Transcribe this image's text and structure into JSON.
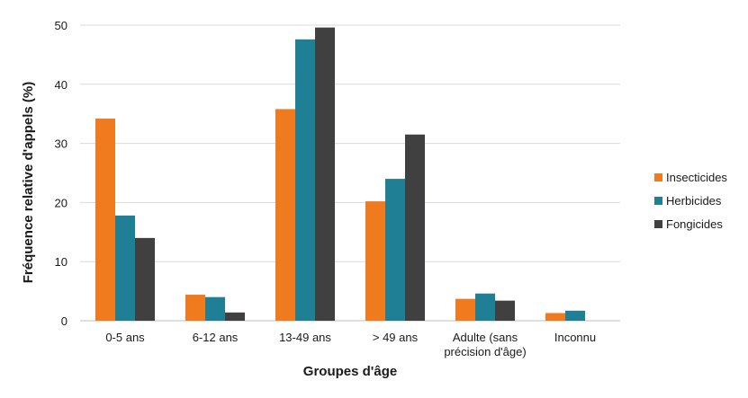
{
  "chart_data": {
    "type": "bar",
    "categories": [
      "0-5 ans",
      "6-12 ans",
      "13-49 ans",
      "> 49 ans",
      "Adulte (sans précision d'âge)",
      "Inconnu"
    ],
    "category_lines": [
      [
        "0-5 ans"
      ],
      [
        "6-12 ans"
      ],
      [
        "13-49 ans"
      ],
      [
        "> 49 ans"
      ],
      [
        "Adulte (sans",
        "précision d'âge)"
      ],
      [
        "Inconnu"
      ]
    ],
    "series": [
      {
        "name": "Insecticides",
        "color": "#F07A1E",
        "values": [
          34.2,
          4.4,
          35.8,
          20.2,
          3.7,
          1.3
        ]
      },
      {
        "name": "Herbicides",
        "color": "#1F7F95",
        "values": [
          17.8,
          4.0,
          47.6,
          24.0,
          4.6,
          1.7
        ]
      },
      {
        "name": "Fongicides",
        "color": "#404040",
        "values": [
          14.0,
          1.4,
          49.6,
          31.5,
          3.4,
          0
        ]
      }
    ],
    "xlabel": "Groupes d'âge",
    "ylabel": "Fréquence relative d'appels  (%)",
    "ylim": [
      0,
      50
    ],
    "yticks": [
      0,
      10,
      20,
      30,
      40,
      50
    ],
    "grid": true,
    "legend_position": "right"
  }
}
